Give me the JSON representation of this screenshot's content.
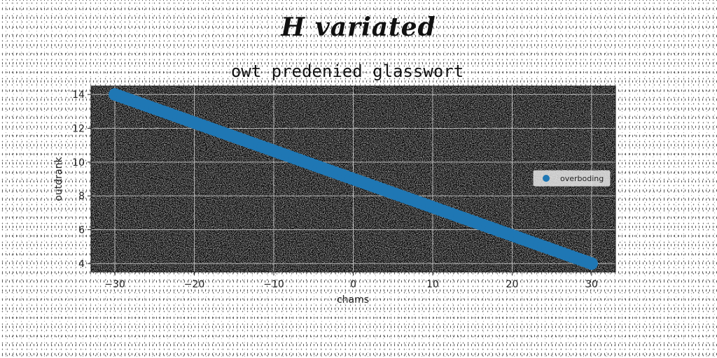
{
  "suptitle": "H variated",
  "chart_data": {
    "type": "scatter",
    "title": "owt predenied glasswort",
    "xlabel": "chams",
    "ylabel": "outdrank",
    "xlim": [
      -33,
      33
    ],
    "ylim": [
      3.5,
      14.5
    ],
    "xticks": [
      -30,
      -20,
      -10,
      0,
      10,
      20,
      30
    ],
    "xtick_labels": [
      "−30",
      "−20",
      "−10",
      "0",
      "10",
      "20",
      "30"
    ],
    "yticks": [
      4,
      6,
      8,
      10,
      12,
      14
    ],
    "ytick_labels": [
      "4",
      "6",
      "8",
      "10",
      "12",
      "14"
    ],
    "grid": true,
    "legend": "right",
    "plot_background": "#808080",
    "series": [
      {
        "name": "overboding",
        "color": "#1f77b4",
        "x_start": -30,
        "x_end": 30,
        "y_start": 14,
        "y_end": 4,
        "num_points": 120
      }
    ]
  }
}
